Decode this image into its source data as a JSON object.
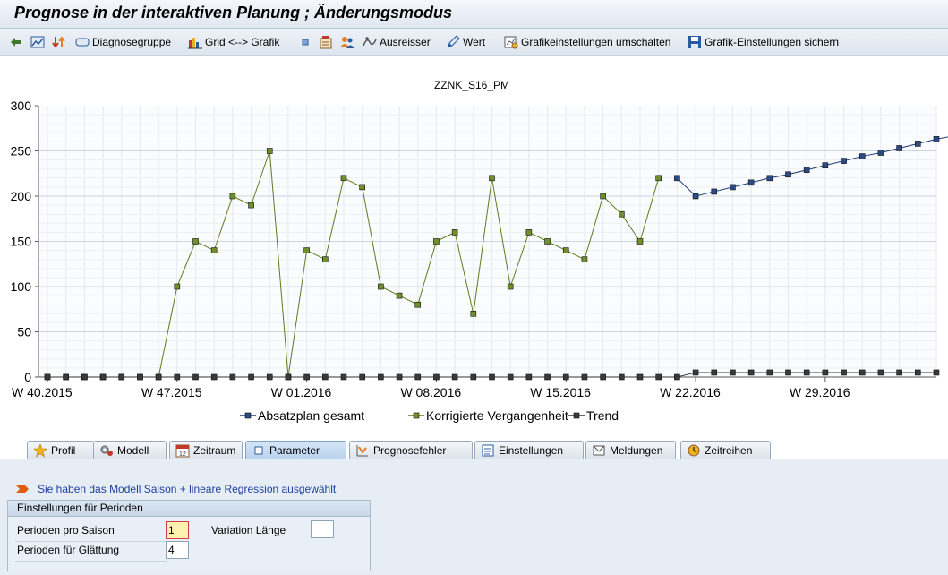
{
  "window": {
    "title": "Prognose in der interaktiven Planung  ; Änderungsmodus"
  },
  "toolbar": {
    "diagnose_label": "Diagnosegruppe",
    "grid_label": "Grid <--> Grafik",
    "ausreisser_label": "Ausreisser",
    "wert_label": "Wert",
    "grafik_umschalten_label": "Grafikeinstellungen umschalten",
    "grafik_sichern_label": "Grafik-Einstellungen sichern"
  },
  "chart_data": {
    "type": "line",
    "title": "ZZNK_S16_PM",
    "xlabel": "",
    "ylabel": "",
    "ylim": [
      0,
      300
    ],
    "yticks": [
      0,
      50,
      100,
      150,
      200,
      250,
      300
    ],
    "xtick_labels": [
      "W 40.2015",
      "W 47.2015",
      "W 01.2016",
      "W 08.2016",
      "W 15.2016",
      "W 22.2016",
      "W 29.2016"
    ],
    "xtick_indices": [
      0,
      7,
      14,
      21,
      28,
      35,
      42
    ],
    "grid": true,
    "legend_position": "bottom",
    "n_points": 49,
    "series": [
      {
        "name": "Absatzplan gesamt",
        "color": "#1f3b73",
        "start_index": 34,
        "values": [
          220,
          200,
          205,
          210,
          215,
          220,
          224,
          229,
          234,
          239,
          244,
          248,
          253,
          258,
          263,
          267
        ]
      },
      {
        "name": "Korrigierte Vergangenheit",
        "color": "#5e7a1e",
        "start_index": 0,
        "values": [
          0,
          0,
          0,
          0,
          0,
          0,
          0,
          100,
          150,
          140,
          200,
          190,
          250,
          0,
          140,
          130,
          220,
          210,
          100,
          90,
          80,
          150,
          160,
          70,
          220,
          100,
          160,
          150,
          140,
          130,
          200,
          180,
          150,
          220
        ]
      },
      {
        "name": "Trend",
        "color": "#333333",
        "start_index": 0,
        "values": [
          0,
          0,
          0,
          0,
          0,
          0,
          0,
          0,
          0,
          0,
          0,
          0,
          0,
          0,
          0,
          0,
          0,
          0,
          0,
          0,
          0,
          0,
          0,
          0,
          0,
          0,
          0,
          0,
          0,
          0,
          0,
          0,
          0,
          0,
          0,
          5,
          5,
          5,
          5,
          5,
          5,
          5,
          5,
          5,
          5,
          5,
          5,
          5,
          5
        ]
      }
    ]
  },
  "tabs": [
    {
      "label": "Profil",
      "icon": "star-icon",
      "active": false
    },
    {
      "label": "Modell",
      "icon": "model-gear-icon",
      "active": false
    },
    {
      "label": "Zeitraum",
      "icon": "calendar-icon",
      "active": false
    },
    {
      "label": "Parameter",
      "icon": "parameter-icon",
      "active": true
    },
    {
      "label": "Prognosefehler",
      "icon": "forecast-error-icon",
      "active": false
    },
    {
      "label": "Einstellungen",
      "icon": "settings-icon",
      "active": false
    },
    {
      "label": "Meldungen",
      "icon": "messages-icon",
      "active": false
    },
    {
      "label": "Zeitreihen",
      "icon": "timeseries-icon",
      "active": false
    }
  ],
  "parameter": {
    "message": "Sie haben das Modell Saison + lineare Regression ausgewählt",
    "group_title": "Einstellungen für Perioden",
    "perioden_saison_label": "Perioden pro Saison",
    "perioden_saison_value": "1",
    "perioden_glaettung_label": "Perioden für Glättung",
    "perioden_glaettung_value": "4",
    "variation_laenge_label": "Variation Länge",
    "variation_laenge_value": ""
  }
}
